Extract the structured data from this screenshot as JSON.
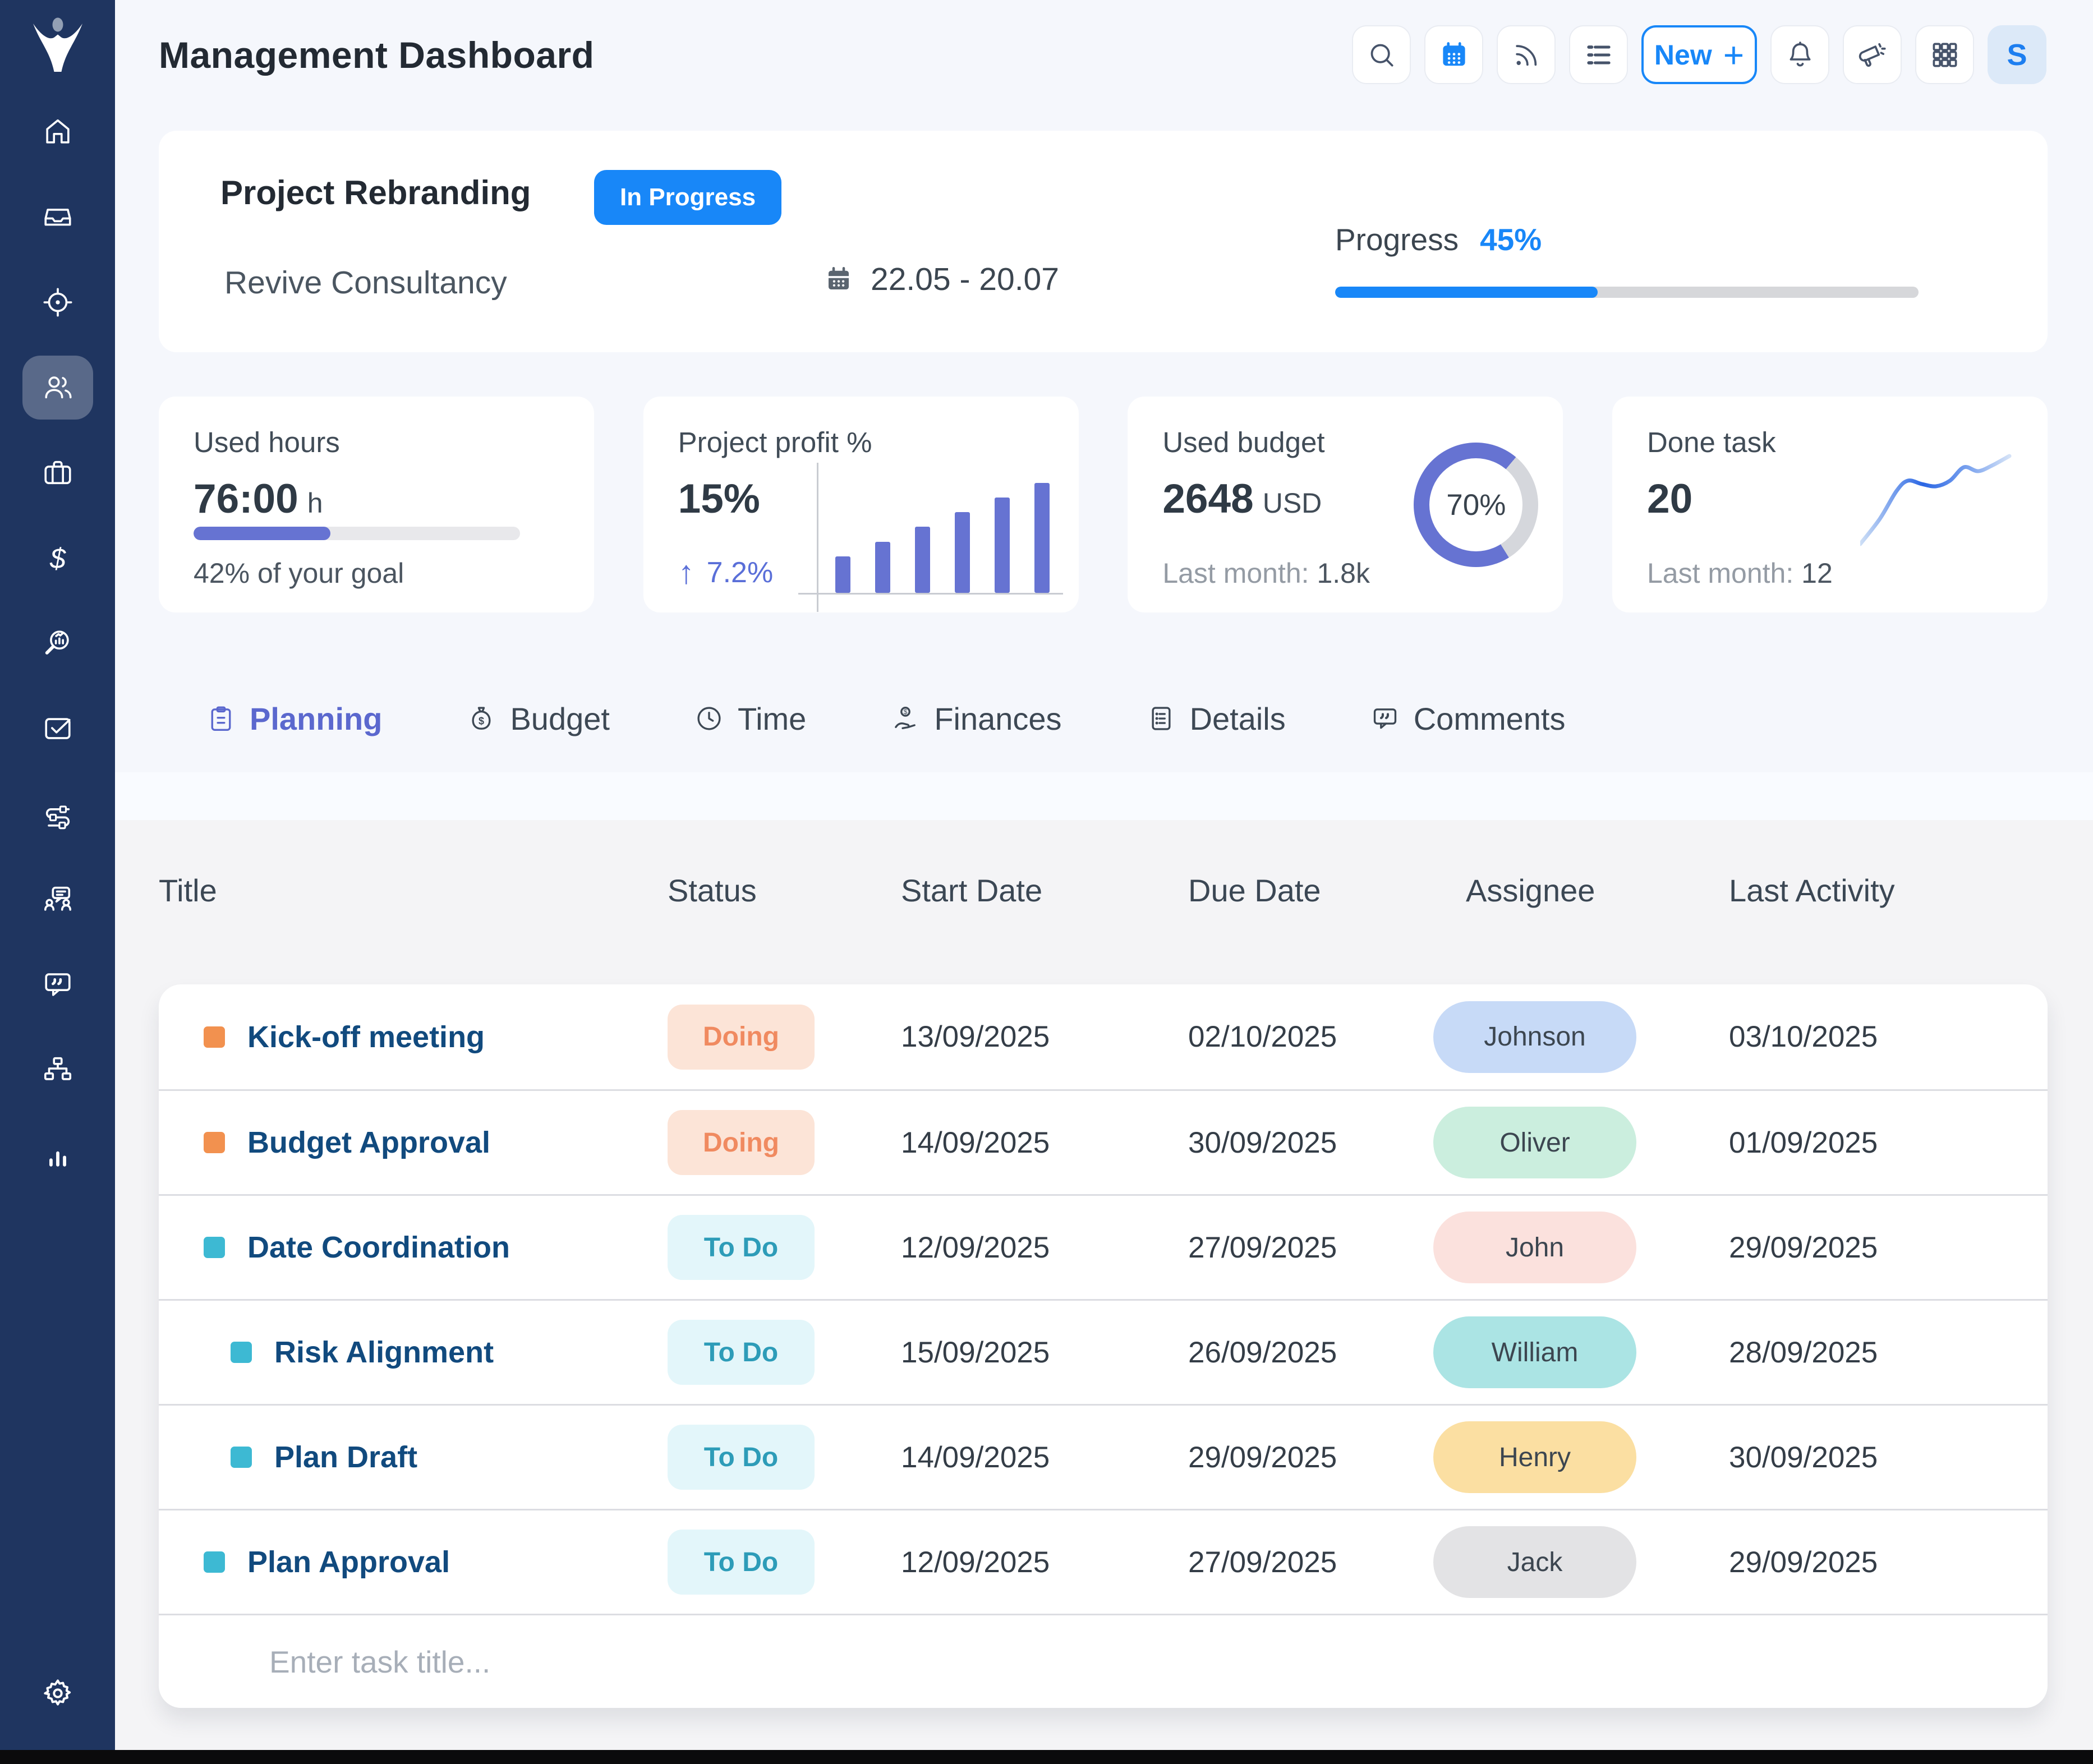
{
  "app": {
    "title": "Management Dashboard"
  },
  "toolbar": {
    "buttons": [
      "search",
      "calendar",
      "feed",
      "list",
      "new",
      "notifications",
      "announcements",
      "apps",
      "profile"
    ],
    "new_label": "New",
    "avatar_initial": "S"
  },
  "sidebar": {
    "items": [
      {
        "icon": "home",
        "active": false
      },
      {
        "icon": "inbox",
        "active": false
      },
      {
        "icon": "target",
        "active": false
      },
      {
        "icon": "team",
        "active": true
      },
      {
        "icon": "projects",
        "active": false
      },
      {
        "icon": "finance",
        "active": false
      },
      {
        "icon": "analytics",
        "active": false
      },
      {
        "icon": "tasks",
        "active": false
      },
      {
        "icon": "workflow",
        "active": false
      },
      {
        "icon": "meetings",
        "active": false
      },
      {
        "icon": "chat",
        "active": false
      },
      {
        "icon": "structure",
        "active": false
      },
      {
        "icon": "reports",
        "active": false
      }
    ],
    "settings_icon": "gear"
  },
  "project": {
    "name": "Project Rebranding",
    "status_label": "In Progress",
    "client": "Revive Consultancy",
    "date_range": "22.05 - 20.07",
    "progress_label": "Progress",
    "progress_value": "45%",
    "progress_percent": 45
  },
  "stats": {
    "used_hours": {
      "label": "Used hours",
      "value": "76:00",
      "unit": "h",
      "percent": 42,
      "caption": "42% of your goal"
    },
    "profit": {
      "label": "Project profit %",
      "value": "15%",
      "delta": "7.2%",
      "bars": [
        10,
        14,
        18,
        22,
        26,
        30
      ]
    },
    "budget": {
      "label": "Used budget",
      "value": "2648",
      "unit": "USD",
      "percent": 70,
      "percent_label": "70%",
      "caption_prefix": "Last month:",
      "caption_value": "1.8k"
    },
    "done": {
      "label": "Done task",
      "value": "20",
      "caption_prefix": "Last month:",
      "caption_value": "12",
      "spark": [
        [
          0,
          163
        ],
        [
          35,
          118
        ],
        [
          65,
          68
        ],
        [
          85,
          50
        ],
        [
          110,
          56
        ],
        [
          135,
          60
        ],
        [
          160,
          50
        ],
        [
          185,
          26
        ],
        [
          210,
          33
        ],
        [
          235,
          23
        ],
        [
          266,
          6
        ]
      ]
    }
  },
  "tabs": [
    {
      "label": "Planning",
      "active": true
    },
    {
      "label": "Budget",
      "active": false
    },
    {
      "label": "Time",
      "active": false
    },
    {
      "label": "Finances",
      "active": false
    },
    {
      "label": "Details",
      "active": false
    },
    {
      "label": "Comments",
      "active": false
    }
  ],
  "table": {
    "columns": [
      "Title",
      "Status",
      "Start Date",
      "Due Date",
      "Assignee",
      "Last Activity"
    ],
    "rows": [
      {
        "title": "Kick-off meeting",
        "bullet_color": "#f2914f",
        "status": "Doing",
        "status_bg": "#fce4d7",
        "status_color": "#f08a60",
        "start": "13/09/2025",
        "due": "02/10/2025",
        "assignee": "Johnson",
        "assignee_bg": "#c7daf7",
        "last_activity": "03/10/2025",
        "indent": false
      },
      {
        "title": "Budget Approval",
        "bullet_color": "#f2914f",
        "status": "Doing",
        "status_bg": "#fce4d7",
        "status_color": "#f08a60",
        "start": "14/09/2025",
        "due": "30/09/2025",
        "assignee": "Oliver",
        "assignee_bg": "#cbeede",
        "last_activity": "01/09/2025",
        "indent": false
      },
      {
        "title": "Date Coordination",
        "bullet_color": "#3db9d3",
        "status": "To Do",
        "status_bg": "#e3f6fa",
        "status_color": "#2d9cb8",
        "start": "12/09/2025",
        "due": "27/09/2025",
        "assignee": "John",
        "assignee_bg": "#fbe1dd",
        "last_activity": "29/09/2025",
        "indent": false
      },
      {
        "title": "Risk Alignment",
        "bullet_color": "#3db9d3",
        "status": "To Do",
        "status_bg": "#e3f6fa",
        "status_color": "#2d9cb8",
        "start": "15/09/2025",
        "due": "26/09/2025",
        "assignee": "William",
        "assignee_bg": "#abe4e4",
        "last_activity": "28/09/2025",
        "indent": true
      },
      {
        "title": "Plan Draft",
        "bullet_color": "#3db9d3",
        "status": "To Do",
        "status_bg": "#e3f6fa",
        "status_color": "#2d9cb8",
        "start": "14/09/2025",
        "due": "29/09/2025",
        "assignee": "Henry",
        "assignee_bg": "#fbdfa2",
        "last_activity": "30/09/2025",
        "indent": true
      },
      {
        "title": "Plan Approval",
        "bullet_color": "#3db9d3",
        "status": "To Do",
        "status_bg": "#e3f6fa",
        "status_color": "#2d9cb8",
        "start": "12/09/2025",
        "due": "27/09/2025",
        "assignee": "Jack",
        "assignee_bg": "#e3e3e5",
        "last_activity": "29/09/2025",
        "indent": false
      }
    ],
    "input_placeholder": "Enter task title..."
  },
  "colors": {
    "accent_blue": "#1887f8",
    "purple": "#6673d2",
    "sidebar_navy": "#1f3560",
    "donut_track": "#d5d7dc",
    "status_doing_bg": "#fce4d7",
    "status_doing_text": "#f08a60",
    "status_todo_bg": "#e3f6fa",
    "status_todo_text": "#2d9cb8"
  }
}
